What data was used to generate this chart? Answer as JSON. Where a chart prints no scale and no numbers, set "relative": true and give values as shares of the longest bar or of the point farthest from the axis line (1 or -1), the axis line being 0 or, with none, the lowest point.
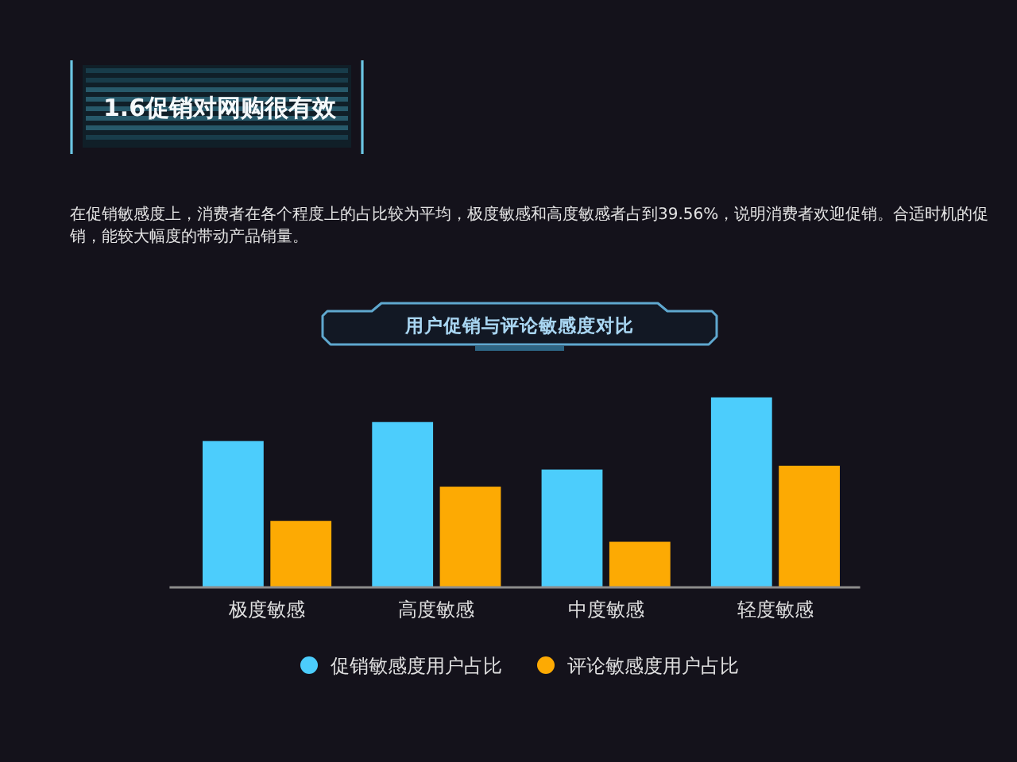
{
  "chart_data": {
    "type": "bar",
    "title": "1.6促销对网购很有效",
    "subtitle": "在促销敏感度上，消费者在各个程度上的占比较为平均，极度敏感和高度敏感者占到39.56%，说明消费者欢迎促销。合适时机的促销，能较大幅度的带动产品销量。",
    "annotations": [
      "用户促销与评论敏感度对比"
    ],
    "categories": [
      "极度敏感",
      "高度敏感",
      "中度敏感",
      "轻度敏感"
    ],
    "series": [
      {
        "name": "促销敏感度用户占比",
        "color": "#4ccdfc",
        "values": [
          0.77,
          0.87,
          0.62,
          1
        ]
      },
      {
        "name": "评论敏感度用户占比",
        "color": "#fdaa03",
        "values": [
          0.35,
          0.53,
          0.24,
          0.64
        ]
      }
    ],
    "relative": true,
    "legend": "bottom"
  }
}
